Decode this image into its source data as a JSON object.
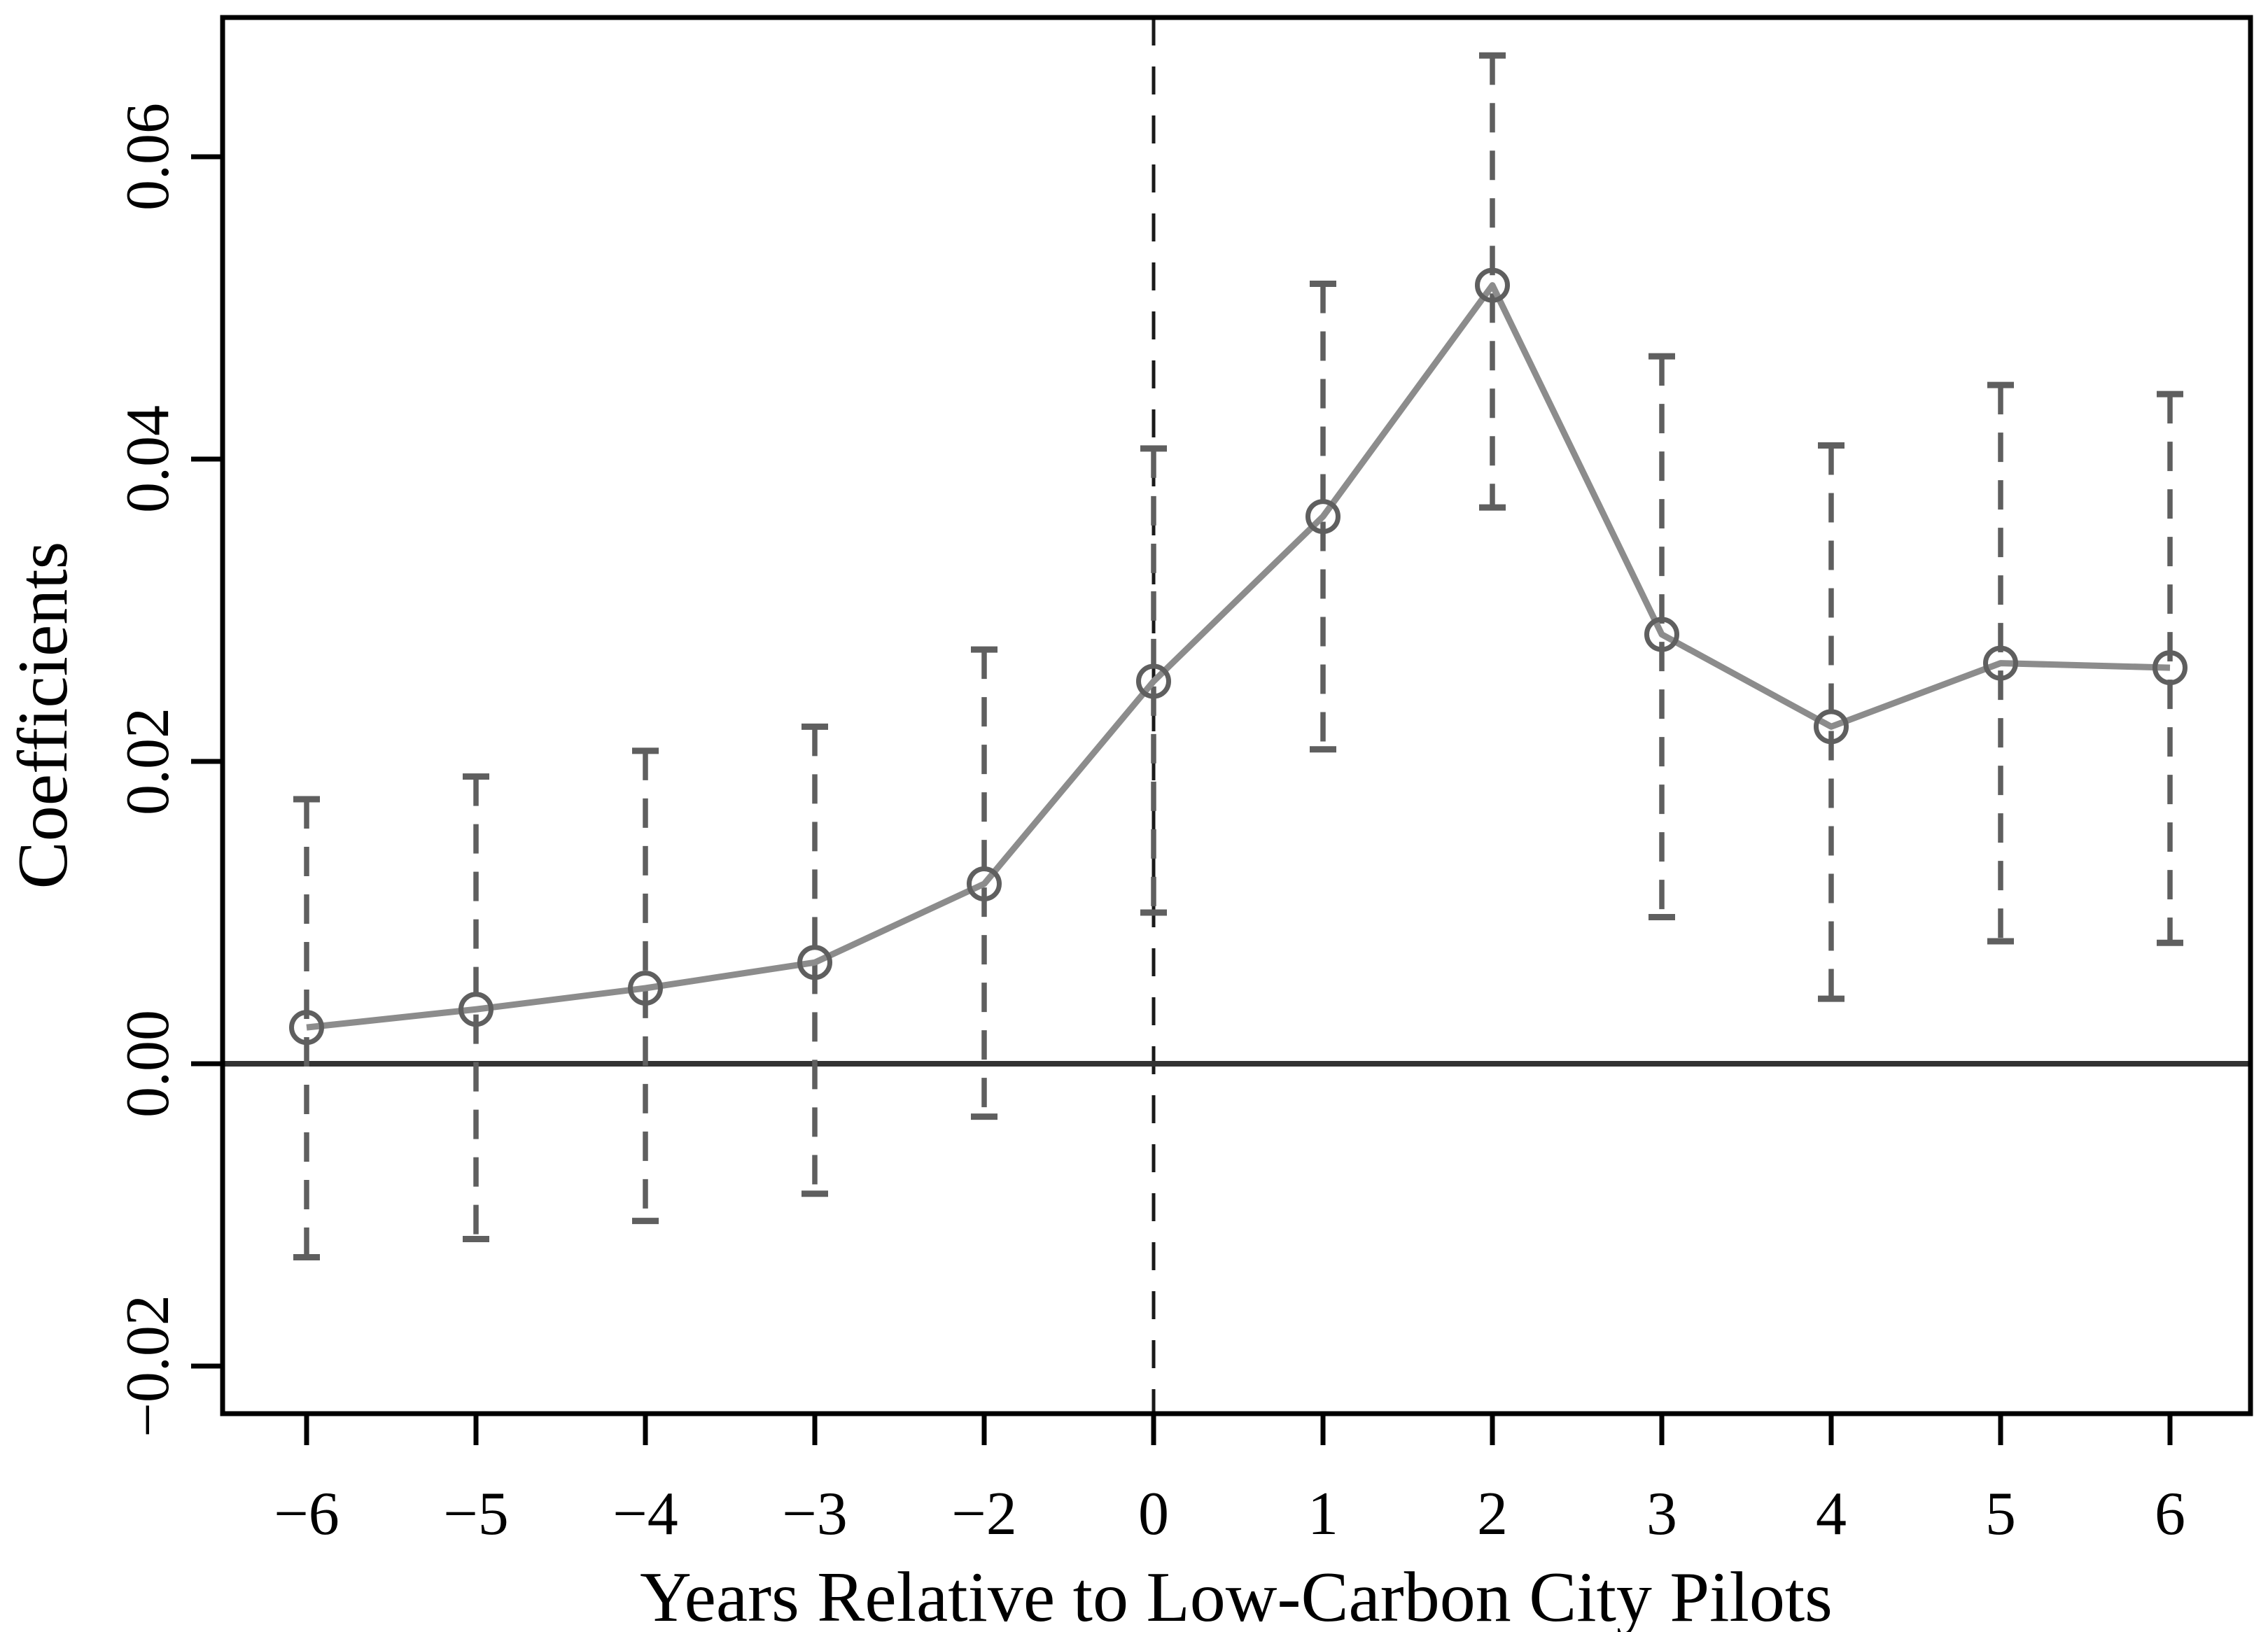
{
  "figure": {
    "background": "#ffffff"
  },
  "chart_data": {
    "type": "line",
    "subtype": "event-study-with-error-bars",
    "title": "",
    "xlabel": "Years Relative to Low-Carbon City Pilots",
    "ylabel": "Coefficients",
    "categories": [
      -6,
      -5,
      -4,
      -3,
      -2,
      0,
      1,
      2,
      3,
      4,
      5,
      6
    ],
    "x_tick_labels": [
      "−6",
      "−5",
      "−4",
      "−3",
      "−2",
      "0",
      "1",
      "2",
      "3",
      "4",
      "5",
      "6"
    ],
    "series": [
      {
        "name": "estimate",
        "values": [
          0.0024,
          0.0036,
          0.005,
          0.0067,
          0.0119,
          0.0253,
          0.0362,
          0.0515,
          0.0284,
          0.0223,
          0.0265,
          0.0262
        ]
      },
      {
        "name": "ci_lower",
        "values": [
          -0.0128,
          -0.0116,
          -0.0104,
          -0.0086,
          -0.0035,
          0.01,
          0.0208,
          0.0368,
          0.0097,
          0.0043,
          0.0081,
          0.008
        ]
      },
      {
        "name": "ci_upper",
        "values": [
          0.0175,
          0.019,
          0.0207,
          0.0223,
          0.0274,
          0.0407,
          0.0516,
          0.0667,
          0.0468,
          0.0409,
          0.0449,
          0.0443
        ]
      }
    ],
    "y_ticks": [
      -0.02,
      0.0,
      0.02,
      0.04,
      0.06
    ],
    "y_tick_labels": [
      "−0.02",
      "0.00",
      "0.02",
      "0.04",
      "0.06"
    ],
    "ylim": [
      -0.0231,
      0.0692
    ],
    "reference_lines": {
      "horizontal_at": 0.0,
      "vertical_at_category": 0
    },
    "grid": false,
    "legend": "none",
    "marker": "open-circle",
    "error_bar_style": "dashed-with-caps",
    "colors": {
      "trend_line": "#8c8c8c",
      "marker": "#5f5f5f",
      "error_bar": "#5f5f5f",
      "zero_line": "#333333",
      "event_ref_line": "#1a1a1a",
      "axis": "#000000",
      "background": "#ffffff"
    }
  }
}
